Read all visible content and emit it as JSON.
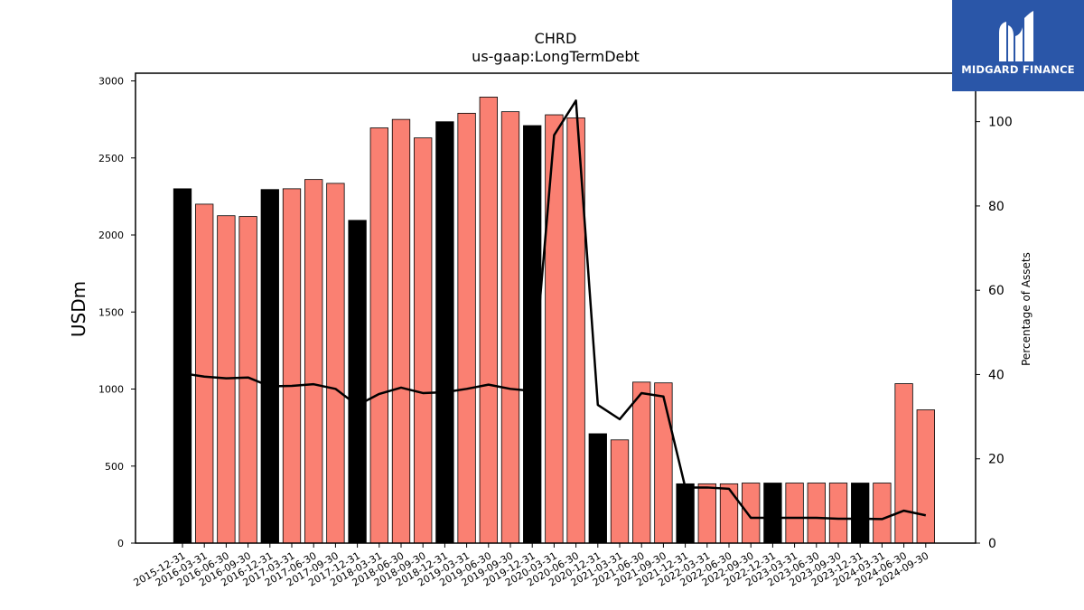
{
  "logo": {
    "text": "MIDGARD FINANCE",
    "icon": "midgard-logo-icon",
    "bg_color": "#2a56a8"
  },
  "chart_data": {
    "type": "bar",
    "title": "CHRD",
    "subtitle": "us-gaap:LongTermDebt",
    "ylabel": "USDm",
    "y2label": "Percentage of Assets",
    "ylim": [
      0,
      3050
    ],
    "y2lim": [
      0,
      111.5
    ],
    "yticks": [
      0,
      500,
      1000,
      1500,
      2000,
      2500,
      3000
    ],
    "y2ticks": [
      0,
      20,
      40,
      60,
      80,
      100
    ],
    "categories": [
      "2015-12-31",
      "2016-03-31",
      "2016-06-30",
      "2016-09-30",
      "2016-12-31",
      "2017-03-31",
      "2017-06-30",
      "2017-09-30",
      "2017-12-31",
      "2018-03-31",
      "2018-06-30",
      "2018-09-30",
      "2018-12-31",
      "2019-03-31",
      "2019-06-30",
      "2019-09-30",
      "2019-12-31",
      "2020-03-31",
      "2020-06-30",
      "2020-12-31",
      "2021-03-31",
      "2021-06-30",
      "2021-09-30",
      "2021-12-31",
      "2022-03-31",
      "2022-06-30",
      "2022-09-30",
      "2022-12-31",
      "2023-03-31",
      "2023-06-30",
      "2023-09-30",
      "2023-12-31",
      "2024-03-31",
      "2024-06-30",
      "2024-09-30"
    ],
    "series": [
      {
        "kind": "bar",
        "values": [
          2300,
          2200,
          2125,
          2120,
          2295,
          2300,
          2360,
          2335,
          2095,
          2695,
          2750,
          2630,
          2735,
          2790,
          2895,
          2800,
          2710,
          2780,
          2760,
          710,
          670,
          1045,
          1040,
          385,
          385,
          385,
          390,
          390,
          390,
          390,
          390,
          390,
          390,
          1035,
          865
        ],
        "colors": [
          "#000000",
          "#fa8072",
          "#fa8072",
          "#fa8072",
          "#000000",
          "#fa8072",
          "#fa8072",
          "#fa8072",
          "#000000",
          "#fa8072",
          "#fa8072",
          "#fa8072",
          "#000000",
          "#fa8072",
          "#fa8072",
          "#fa8072",
          "#000000",
          "#fa8072",
          "#fa8072",
          "#000000",
          "#fa8072",
          "#fa8072",
          "#fa8072",
          "#000000",
          "#fa8072",
          "#fa8072",
          "#fa8072",
          "#000000",
          "#fa8072",
          "#fa8072",
          "#fa8072",
          "#000000",
          "#fa8072",
          "#fa8072",
          "#fa8072"
        ]
      },
      {
        "kind": "line",
        "axis": "right",
        "color": "#000000",
        "values": [
          40.3,
          39.5,
          39.1,
          39.3,
          37.2,
          37.3,
          37.7,
          36.6,
          32.7,
          35.4,
          36.9,
          35.6,
          35.8,
          36.6,
          37.6,
          36.6,
          36.1,
          96.8,
          105.0,
          32.8,
          29.4,
          35.6,
          34.8,
          13.2,
          13.2,
          12.9,
          6.0,
          6.0,
          6.0,
          6.0,
          5.8,
          5.8,
          5.7,
          7.7,
          6.6
        ]
      }
    ],
    "grid": false,
    "legend": "none"
  }
}
